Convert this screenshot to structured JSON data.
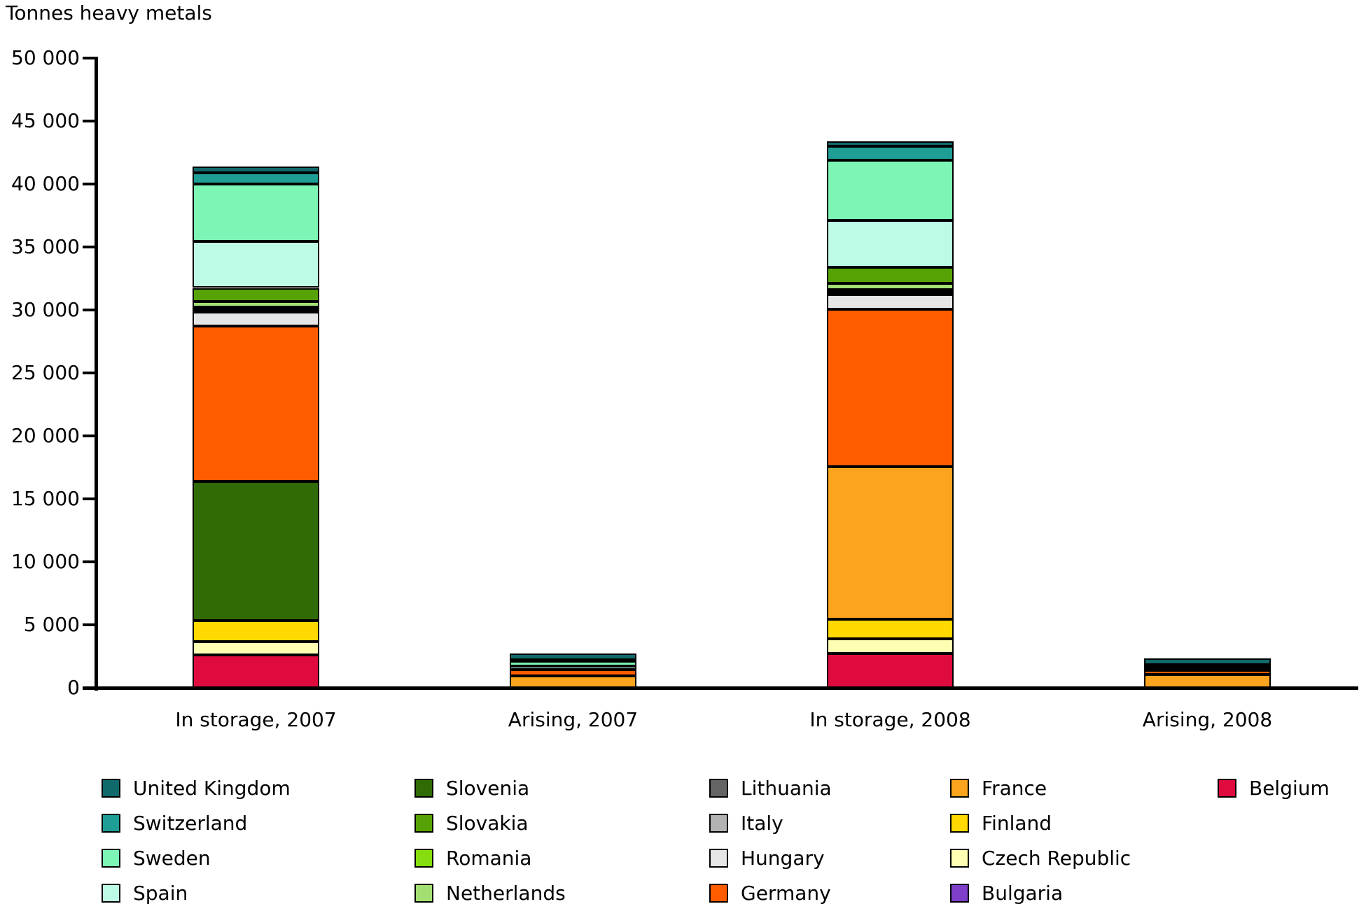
{
  "page": {
    "title": "Tonnes heavy metals"
  },
  "chart_data": {
    "type": "bar",
    "subtype": "stacked",
    "title": "Tonnes heavy metals",
    "ylabel": "Tonnes heavy metals",
    "xlabel": "",
    "grid": false,
    "legend_position": "bottom",
    "ylim": [
      0,
      50000
    ],
    "ytick_interval": 5000,
    "ytick_values": [
      0,
      5000,
      10000,
      15000,
      20000,
      25000,
      30000,
      35000,
      40000,
      45000,
      50000
    ],
    "ytick_labels": [
      "0",
      "5 000",
      "10 000",
      "15 000",
      "20 000",
      "25 000",
      "30 000",
      "35 000",
      "40 000",
      "45 000",
      "50 000"
    ],
    "categories": [
      "In storage, 2007",
      "Arising, 2007",
      "In storage, 2008",
      "Arising, 2008"
    ],
    "countries": [
      {
        "name": "United Kingdom",
        "color": "#10696B"
      },
      {
        "name": "Switzerland",
        "color": "#1F9E96"
      },
      {
        "name": "Sweden",
        "color": "#7DF5B5"
      },
      {
        "name": "Spain",
        "color": "#BEFBE6"
      },
      {
        "name": "Slovenia",
        "color": "#306B05"
      },
      {
        "name": "Slovakia",
        "color": "#57A305"
      },
      {
        "name": "Romania",
        "color": "#86DE10"
      },
      {
        "name": "Netherlands",
        "color": "#A3DF73"
      },
      {
        "name": "Lithuania",
        "color": "#646464"
      },
      {
        "name": "Italy",
        "color": "#B3B3B3"
      },
      {
        "name": "Hungary",
        "color": "#E6E6E6"
      },
      {
        "name": "Germany",
        "color": "#FF5C00"
      },
      {
        "name": "France",
        "color": "#FCA41E"
      },
      {
        "name": "Finland",
        "color": "#FFD900"
      },
      {
        "name": "Czech Republic",
        "color": "#FFFFB4"
      },
      {
        "name": "Bulgaria",
        "color": "#7F3FC8"
      },
      {
        "name": "Belgium",
        "color": "#DF0A3E"
      }
    ],
    "legend_columns": [
      [
        "United Kingdom",
        "Switzerland",
        "Sweden",
        "Spain"
      ],
      [
        "Slovenia",
        "Slovakia",
        "Romania",
        "Netherlands"
      ],
      [
        "Lithuania",
        "Italy",
        "Hungary",
        "Germany"
      ],
      [
        "France",
        "Finland",
        "Czech Republic",
        "Bulgaria"
      ],
      [
        "Belgium"
      ]
    ],
    "bars": [
      {
        "category": "In storage, 2007",
        "total_approx": 41400,
        "segments_bottom_to_top": [
          {
            "country": "Belgium",
            "value": 2600
          },
          {
            "country": "Czech Republic",
            "value": 1050
          },
          {
            "country": "Finland",
            "value": 1700
          },
          {
            "country": "Slovenia",
            "value": 11050
          },
          {
            "country": "Germany",
            "value": 12300
          },
          {
            "country": "Hungary",
            "value": 1150
          },
          {
            "country": "Italy",
            "value": 200
          },
          {
            "country": "Lithuania",
            "value": 150
          },
          {
            "country": "Netherlands",
            "value": 450
          },
          {
            "country": "Slovakia",
            "value": 1100
          },
          {
            "country": "Spain",
            "value": 3700
          },
          {
            "country": "Sweden",
            "value": 4550
          },
          {
            "country": "Switzerland",
            "value": 900
          },
          {
            "country": "United Kingdom",
            "value": 500
          }
        ]
      },
      {
        "category": "Arising, 2007",
        "total_approx": 2750,
        "segments_bottom_to_top": [
          {
            "country": "France",
            "value": 950
          },
          {
            "country": "Germany",
            "value": 500
          },
          {
            "country": "Spain",
            "value": 250
          },
          {
            "country": "Sweden",
            "value": 450
          },
          {
            "country": "Switzerland",
            "value": 100
          },
          {
            "country": "United Kingdom",
            "value": 500
          }
        ]
      },
      {
        "category": "In storage, 2008",
        "total_approx": 43400,
        "segments_bottom_to_top": [
          {
            "country": "Belgium",
            "value": 2700
          },
          {
            "country": "Czech Republic",
            "value": 1200
          },
          {
            "country": "Finland",
            "value": 1550
          },
          {
            "country": "France",
            "value": 12100
          },
          {
            "country": "Germany",
            "value": 12500
          },
          {
            "country": "Hungary",
            "value": 1200
          },
          {
            "country": "Italy",
            "value": 200
          },
          {
            "country": "Lithuania",
            "value": 150
          },
          {
            "country": "Netherlands",
            "value": 500
          },
          {
            "country": "Slovakia",
            "value": 1300
          },
          {
            "country": "Spain",
            "value": 3700
          },
          {
            "country": "Sweden",
            "value": 4800
          },
          {
            "country": "Switzerland",
            "value": 1100
          },
          {
            "country": "United Kingdom",
            "value": 400
          }
        ]
      },
      {
        "category": "Arising, 2008",
        "total_approx": 2350,
        "segments_bottom_to_top": [
          {
            "country": "France",
            "value": 1050
          },
          {
            "country": "Germany",
            "value": 350
          },
          {
            "country": "Spain",
            "value": 150
          },
          {
            "country": "Sweden",
            "value": 200
          },
          {
            "country": "Switzerland",
            "value": 100
          },
          {
            "country": "United Kingdom",
            "value": 500
          }
        ]
      }
    ]
  }
}
